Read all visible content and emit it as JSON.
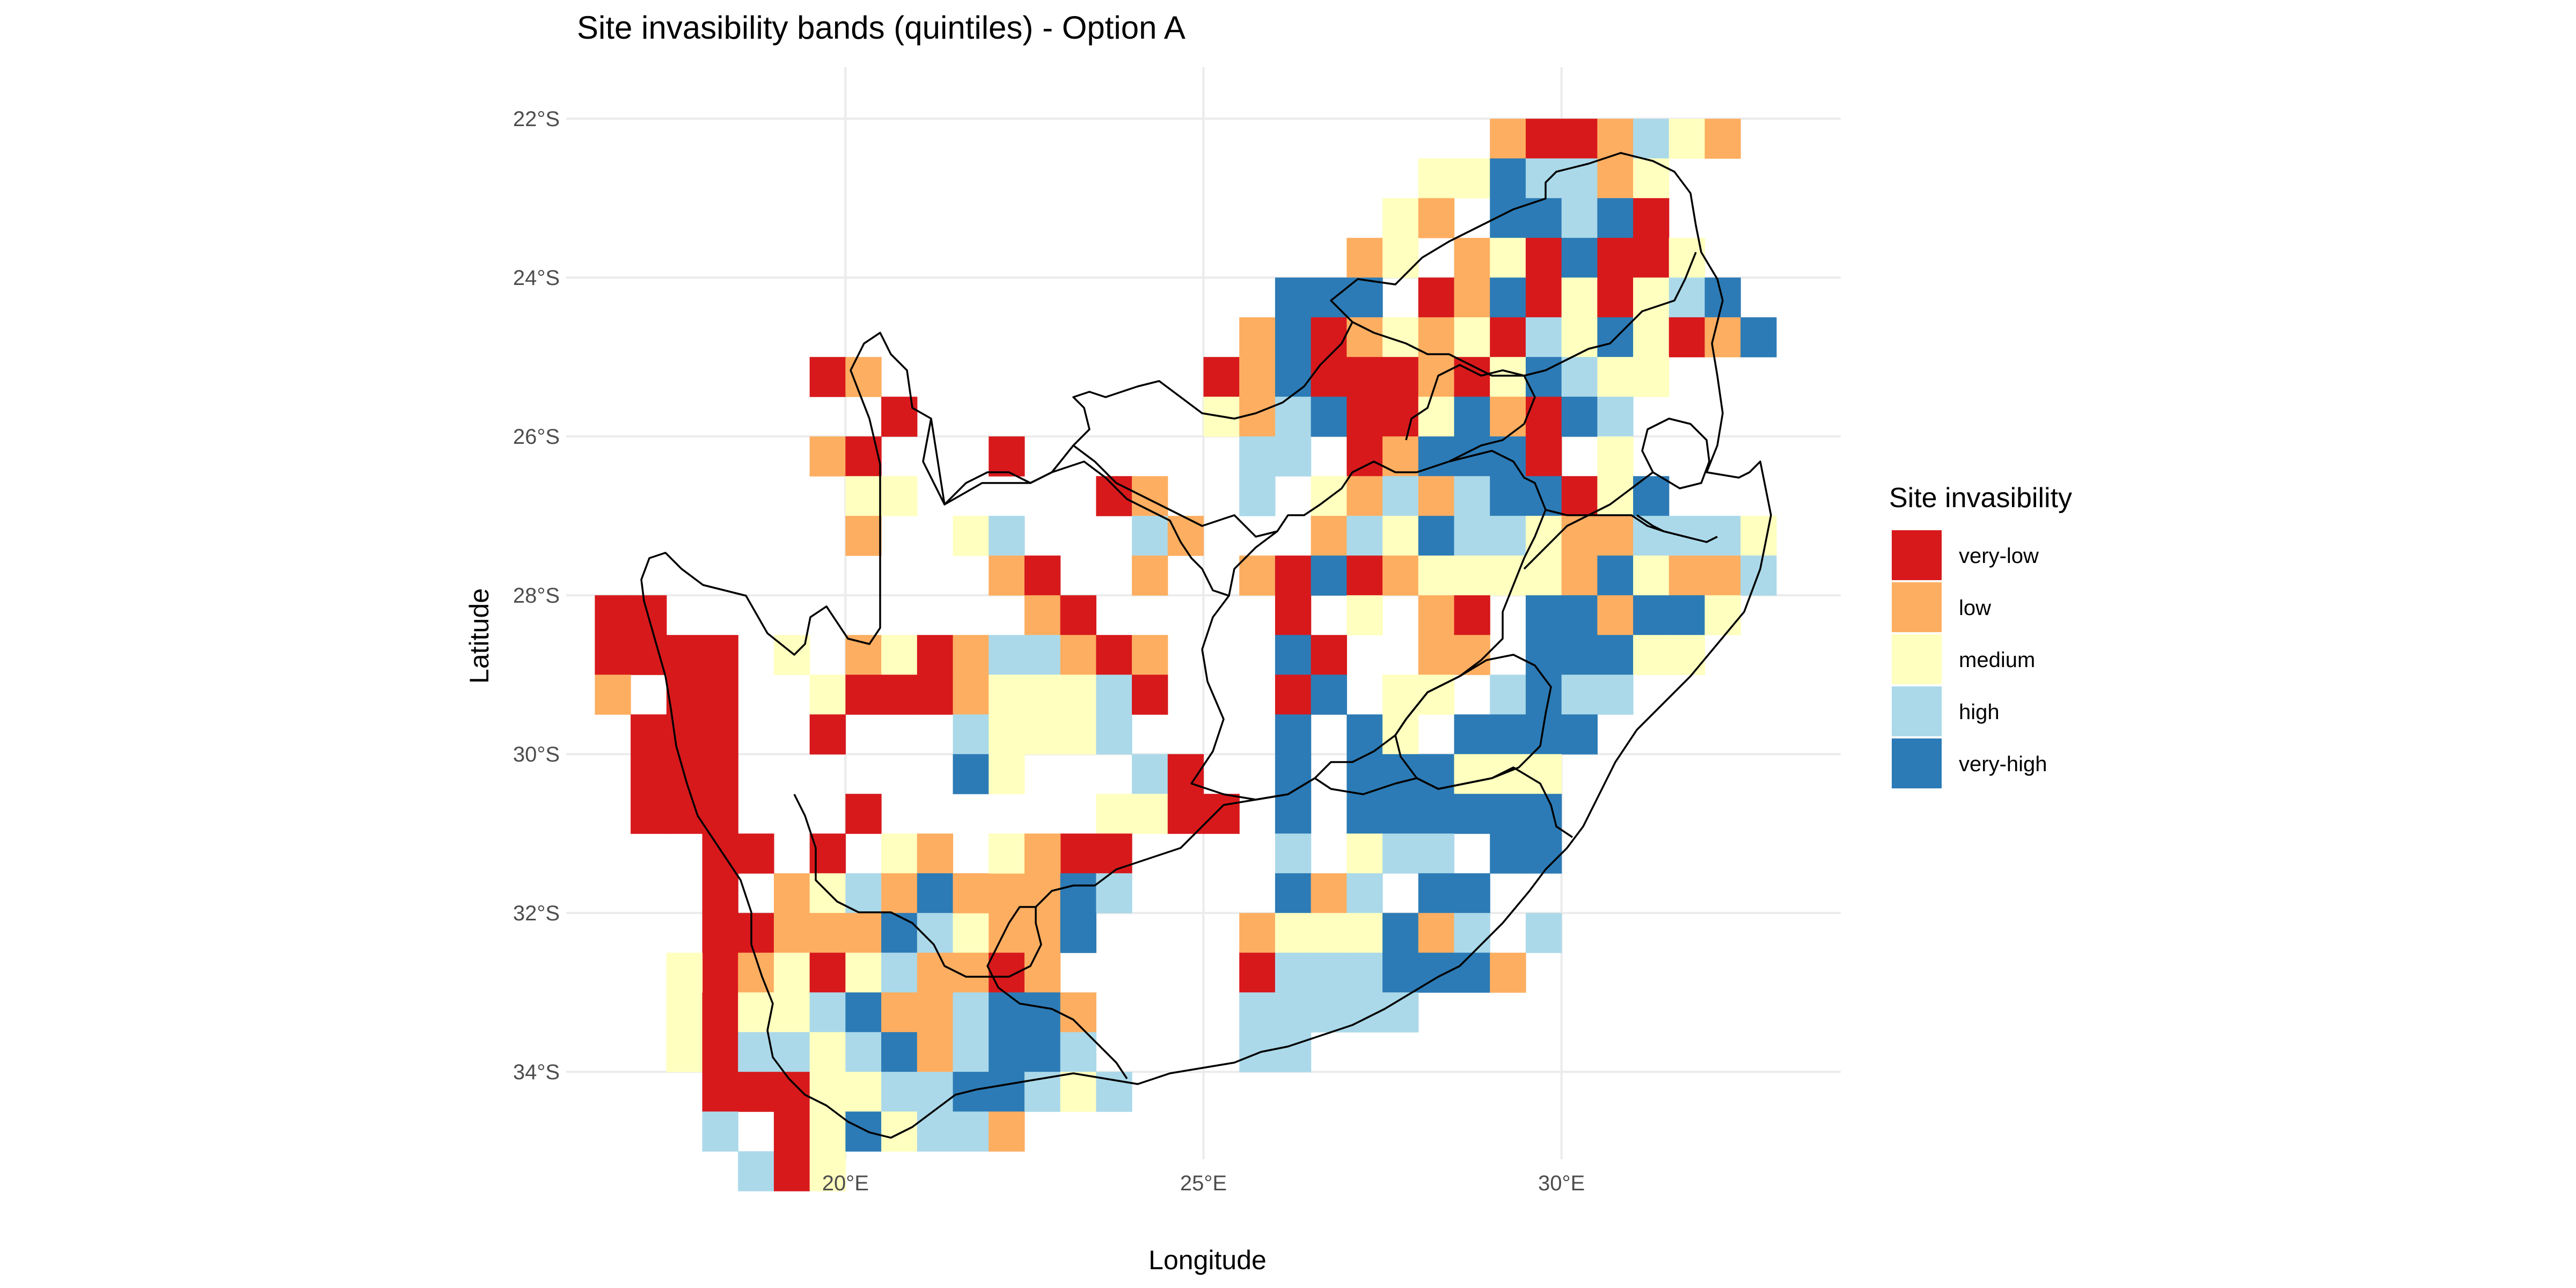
{
  "title": "Site invasibility bands (quintiles) - Option A",
  "x_axis": {
    "label": "Longitude",
    "ticks": [
      {
        "value": 20,
        "label": "20°E"
      },
      {
        "value": 25,
        "label": "25°E"
      },
      {
        "value": 30,
        "label": "30°E"
      }
    ]
  },
  "y_axis": {
    "label": "Latitude",
    "ticks": [
      {
        "value": -22,
        "label": "22°S"
      },
      {
        "value": -24,
        "label": "24°S"
      },
      {
        "value": -26,
        "label": "26°S"
      },
      {
        "value": -28,
        "label": "28°S"
      },
      {
        "value": -30,
        "label": "30°S"
      },
      {
        "value": -32,
        "label": "32°S"
      },
      {
        "value": -34,
        "label": "34°S"
      }
    ]
  },
  "legend": {
    "title": "Site invasibility",
    "position": "right",
    "items": [
      {
        "key": "very-low",
        "label": "very-low",
        "color": "#d7191c"
      },
      {
        "key": "low",
        "label": "low",
        "color": "#fdae61"
      },
      {
        "key": "medium",
        "label": "medium",
        "color": "#ffffbf"
      },
      {
        "key": "high",
        "label": "high",
        "color": "#abd9e9"
      },
      {
        "key": "very-high",
        "label": "very-high",
        "color": "#2c7bb6"
      }
    ]
  },
  "grid": true,
  "chart_data": {
    "type": "heatmap",
    "title": "Site invasibility bands (quintiles) - Option A",
    "xlabel": "Longitude",
    "ylabel": "Latitude",
    "cell_size_deg": 0.5,
    "xlim": [
      16.1,
      33.9
    ],
    "ylim": [
      -35.1,
      -21.35
    ],
    "band_codes": {
      "1": "very-low",
      "2": "low",
      "3": "medium",
      "4": "high",
      "5": "very-high"
    },
    "rows_note": "each row: lat = cell centre latitude, lon0 = centre longitude of first char, cells = band code per 0.5° step ('.' = no data)",
    "rows": [
      {
        "lat": -22.25,
        "lon0": 29.25,
        "cells": "2112432"
      },
      {
        "lat": -22.75,
        "lon0": 28.25,
        "cells": "3354423"
      },
      {
        "lat": -23.25,
        "lon0": 27.75,
        "cells": "32.55451.."
      },
      {
        "lat": -23.75,
        "lon0": 27.25,
        "cells": "23.2315113."
      },
      {
        "lat": -24.25,
        "lon0": 26.25,
        "cells": "555.125131345"
      },
      {
        "lat": -24.75,
        "lon0": 25.75,
        "cells": "251232314353125"
      },
      {
        "lat": -25.25,
        "lon0": 25.25,
        "cells": "1251112135433"
      },
      {
        "lat": -25.75,
        "lon0": 25.25,
        "cells": "324511352154"
      },
      {
        "lat": -26.25,
        "lon0": 25.75,
        "cells": "44.125551.3"
      },
      {
        "lat": -26.75,
        "lon0": 25.75,
        "cells": "4.3242455135"
      },
      {
        "lat": -27.25,
        "lon0": 26.75,
        "cells": "2435443224443"
      },
      {
        "lat": -27.75,
        "lon0": 25.75,
        "cells": "215123333253224"
      },
      {
        "lat": -28.25,
        "lon0": 26.25,
        "cells": "1.3.21.552553"
      },
      {
        "lat": -28.75,
        "lon0": 26.25,
        "cells": "51..22.55533"
      },
      {
        "lat": -29.25,
        "lon0": 26.25,
        "cells": "15.33.4544"
      },
      {
        "lat": -29.75,
        "lon0": 26.25,
        "cells": "5.53.5555"
      },
      {
        "lat": -30.25,
        "lon0": 26.25,
        "cells": "5.555333"
      },
      {
        "lat": -30.75,
        "lon0": 26.25,
        "cells": "5.555555"
      },
      {
        "lat": -31.25,
        "lon0": 26.25,
        "cells": "4.344.55"
      },
      {
        "lat": -31.75,
        "lon0": 26.25,
        "cells": "524.55"
      },
      {
        "lat": -32.25,
        "lon0": 25.75,
        "cells": "2333524.4"
      },
      {
        "lat": -32.75,
        "lon0": 25.75,
        "cells": "14445552"
      },
      {
        "lat": -33.25,
        "lon0": 25.75,
        "cells": "44444"
      },
      {
        "lat": -33.75,
        "lon0": 25.75,
        "cells": "44"
      },
      {
        "lat": -25.25,
        "lon0": 19.75,
        "cells": "12"
      },
      {
        "lat": -25.75,
        "lon0": 20.75,
        "cells": "1"
      },
      {
        "lat": -26.25,
        "lon0": 19.75,
        "cells": "21"
      },
      {
        "lat": -26.75,
        "lon0": 20.25,
        "cells": "33"
      },
      {
        "lat": -27.25,
        "lon0": 20.25,
        "cells": "2"
      },
      {
        "lat": -26.25,
        "lon0": 22.25,
        "cells": "1"
      },
      {
        "lat": -26.75,
        "lon0": 23.75,
        "cells": "12"
      },
      {
        "lat": -27.25,
        "lon0": 21.75,
        "cells": "34"
      },
      {
        "lat": -27.25,
        "lon0": 24.25,
        "cells": "42"
      },
      {
        "lat": -27.75,
        "lon0": 22.25,
        "cells": "21"
      },
      {
        "lat": -27.75,
        "lon0": 24.25,
        "cells": "2"
      },
      {
        "lat": -28.25,
        "lon0": 22.75,
        "cells": "21"
      },
      {
        "lat": -28.75,
        "lon0": 20.25,
        "cells": "231244212"
      },
      {
        "lat": -29.25,
        "lon0": 19.75,
        "cells": "3111233341"
      },
      {
        "lat": -29.75,
        "lon0": 21.75,
        "cells": "43334"
      },
      {
        "lat": -30.25,
        "lon0": 21.75,
        "cells": "53"
      },
      {
        "lat": -30.25,
        "lon0": 24.25,
        "cells": "41"
      },
      {
        "lat": -30.75,
        "lon0": 20.25,
        "cells": "1"
      },
      {
        "lat": -30.75,
        "lon0": 23.75,
        "cells": "3311"
      },
      {
        "lat": -31.25,
        "lon0": 19.75,
        "cells": "1.32.3311"
      },
      {
        "lat": -31.75,
        "lon0": 19.25,
        "cells": "2342522254"
      },
      {
        "lat": -32.25,
        "lon0": 18.75,
        "cells": "1222543225"
      },
      {
        "lat": -32.75,
        "lon0": 18.25,
        "cells": "1231342212"
      },
      {
        "lat": -33.25,
        "lon0": 17.75,
        "cells": "313345224552"
      },
      {
        "lat": -33.75,
        "lon0": 17.75,
        "cells": "314434524554"
      },
      {
        "lat": -34.25,
        "lon0": 18.25,
        "cells": "111334455434"
      },
      {
        "lat": -34.75,
        "lon0": 18.25,
        "cells": "4.1353442"
      },
      {
        "lat": -35.25,
        "lon0": 18.75,
        "cells": "413"
      },
      {
        "lat": -28.25,
        "lon0": 16.75,
        "cells": "11"
      },
      {
        "lat": -28.75,
        "lon0": 16.75,
        "cells": "1111"
      },
      {
        "lat": -29.25,
        "lon0": 16.75,
        "cells": "2.11"
      },
      {
        "lat": -29.75,
        "lon0": 17.25,
        "cells": "111"
      },
      {
        "lat": -30.25,
        "lon0": 17.25,
        "cells": "111"
      },
      {
        "lat": -30.75,
        "lon0": 17.25,
        "cells": "111"
      },
      {
        "lat": -31.25,
        "lon0": 18.25,
        "cells": "11"
      },
      {
        "lat": -31.75,
        "lon0": 18.25,
        "cells": "1"
      },
      {
        "lat": -32.25,
        "lon0": 18.25,
        "cells": "1"
      },
      {
        "lat": -29.75,
        "lon0": 19.75,
        "cells": "1"
      },
      {
        "lat": -32.75,
        "lon0": 17.75,
        "cells": "3"
      },
      {
        "lat": -31.25,
        "lon0": 22.25,
        "cells": "32"
      },
      {
        "lat": -31.75,
        "lon0": 21.75,
        "cells": "2"
      },
      {
        "lat": -28.75,
        "lon0": 19.25,
        "cells": "3"
      }
    ]
  }
}
